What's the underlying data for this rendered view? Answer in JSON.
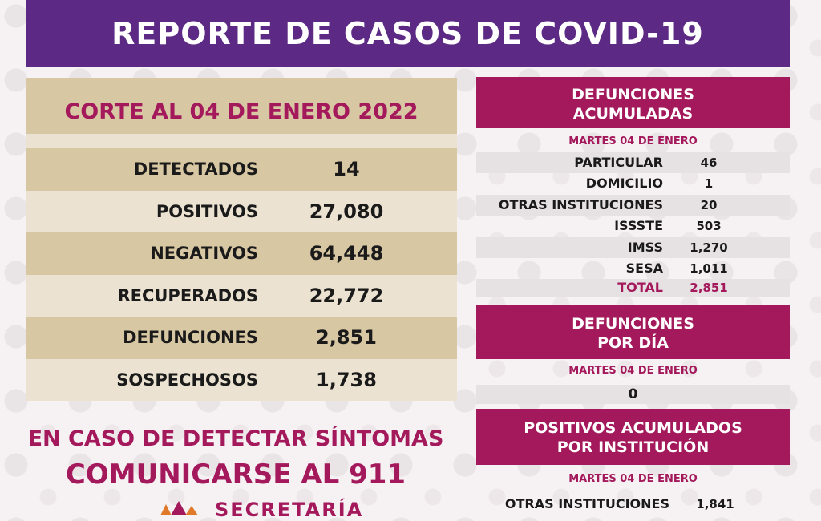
{
  "title": "REPORTE DE CASOS DE COVID-19",
  "corte": "CORTE AL 04 DE ENERO 2022",
  "stats": [
    {
      "label": "DETECTADOS",
      "value": "14"
    },
    {
      "label": "POSITIVOS",
      "value": "27,080"
    },
    {
      "label": "NEGATIVOS",
      "value": "64,448"
    },
    {
      "label": "RECUPERADOS",
      "value": "22,772"
    },
    {
      "label": "DEFUNCIONES",
      "value": "2,851"
    },
    {
      "label": "SOSPECHOSOS",
      "value": "1,738"
    }
  ],
  "cta": {
    "line1": "EN CASO DE DETECTAR SÍNTOMAS",
    "line2": "COMUNICARSE AL 911"
  },
  "footer_logo_text": "SECRETARÍA",
  "defunciones_acumuladas": {
    "title_line1": "DEFUNCIONES",
    "title_line2": "ACUMULADAS",
    "date": "MARTES 04 DE ENERO",
    "rows": [
      {
        "label": "PARTICULAR",
        "value": "46"
      },
      {
        "label": "DOMICILIO",
        "value": "1"
      },
      {
        "label": "OTRAS INSTITUCIONES",
        "value": "20"
      },
      {
        "label": "ISSSTE",
        "value": "503"
      },
      {
        "label": "IMSS",
        "value": "1,270"
      },
      {
        "label": "SESA",
        "value": "1,011"
      }
    ],
    "total_label": "TOTAL",
    "total_value": "2,851"
  },
  "defunciones_dia": {
    "title_line1": "DEFUNCIONES",
    "title_line2": "POR DÍA",
    "date": "MARTES 04 DE ENERO",
    "value": "0"
  },
  "positivos_institucion": {
    "title_line1": "POSITIVOS ACUMULADOS",
    "title_line2": "POR INSTITUCIÓN",
    "date": "MARTES 04 DE ENERO",
    "rows": [
      {
        "label": "OTRAS INSTITUCIONES",
        "value": "1,841"
      }
    ]
  },
  "colors": {
    "purple": "#5c2a84",
    "magenta": "#a3195b",
    "tan": "#d8c7a3",
    "tan_light": "#ebe2d1"
  }
}
